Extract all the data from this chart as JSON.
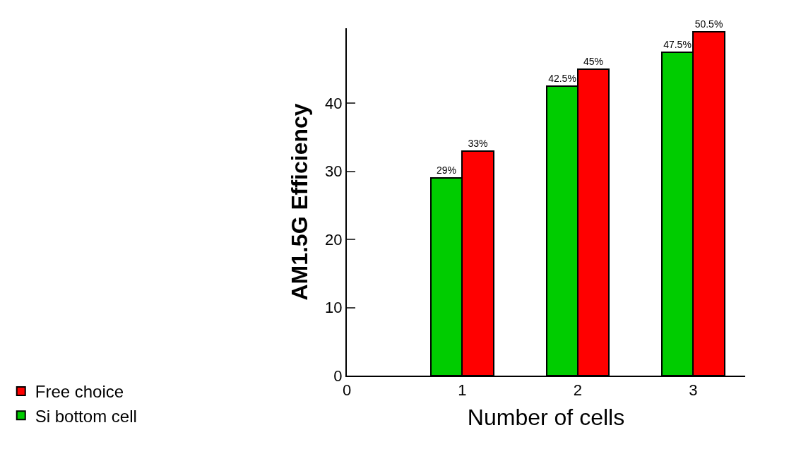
{
  "chart_data": {
    "type": "bar",
    "xlabel": "Number of cells",
    "ylabel": "AM1.5G Efficiency",
    "x": [
      1,
      2,
      3
    ],
    "xlim": [
      0,
      3.45
    ],
    "xticks": [
      0,
      1,
      2,
      3
    ],
    "ylim": [
      0,
      51
    ],
    "yticks": [
      0,
      10,
      20,
      30,
      40
    ],
    "series": [
      {
        "name": "Si bottom cell",
        "color": "#00cc00",
        "values": [
          29,
          42.5,
          47.5
        ],
        "value_labels": [
          "29%",
          "42.5%",
          "47.5%"
        ]
      },
      {
        "name": "Free choice",
        "color": "#ff0000",
        "values": [
          33,
          45,
          50.5
        ],
        "value_labels": [
          "33%",
          "45%",
          "50.5%"
        ]
      }
    ],
    "legend": "bottom left"
  }
}
